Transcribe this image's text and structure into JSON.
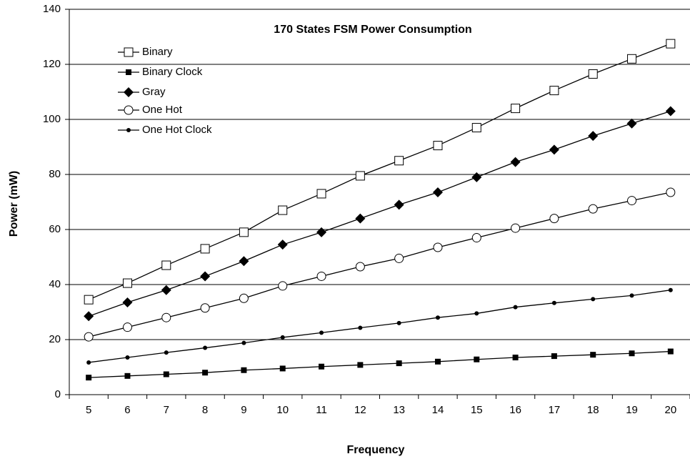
{
  "chart_data": {
    "type": "line",
    "title": "170 States FSM Power Consumption",
    "x_label": "Frequency",
    "y_label": "Power (mW)",
    "categories": [
      "5",
      "6",
      "7",
      "8",
      "9",
      "10",
      "11",
      "12",
      "13",
      "14",
      "15",
      "16",
      "17",
      "18",
      "19",
      "20"
    ],
    "ylim": [
      0,
      140
    ],
    "yticks": [
      0,
      20,
      40,
      60,
      80,
      100,
      120,
      140
    ],
    "grid": true,
    "legend": "upper left",
    "series": [
      {
        "name": "Binary",
        "color": "#000000",
        "marker": "open-square",
        "values": [
          34.5,
          40.5,
          47,
          53,
          59,
          67,
          73,
          79.5,
          85,
          90.5,
          97,
          104,
          110.5,
          116.5,
          122,
          127.5
        ]
      },
      {
        "name": "Binary Clock",
        "color": "#000000",
        "marker": "square",
        "values": [
          6.2,
          6.8,
          7.4,
          8,
          8.9,
          9.5,
          10.2,
          10.8,
          11.4,
          12,
          12.8,
          13.5,
          14,
          14.5,
          15,
          15.7
        ]
      },
      {
        "name": "Gray",
        "color": "#000000",
        "marker": "diamond",
        "values": [
          28.5,
          33.5,
          38,
          43,
          48.5,
          54.5,
          59,
          64,
          69,
          73.5,
          79,
          84.5,
          89,
          94,
          98.5,
          103
        ]
      },
      {
        "name": "One Hot",
        "color": "#000000",
        "marker": "open-circle",
        "values": [
          21,
          24.5,
          28,
          31.5,
          35,
          39.5,
          43,
          46.5,
          49.5,
          53.5,
          57,
          60.5,
          64,
          67.5,
          70.5,
          73.5
        ]
      },
      {
        "name": "One Hot Clock",
        "color": "#000000",
        "marker": "dot",
        "values": [
          11.7,
          13.5,
          15.3,
          17,
          18.8,
          20.8,
          22.5,
          24.3,
          26,
          28,
          29.5,
          31.8,
          33.3,
          34.7,
          36,
          38
        ]
      }
    ]
  }
}
